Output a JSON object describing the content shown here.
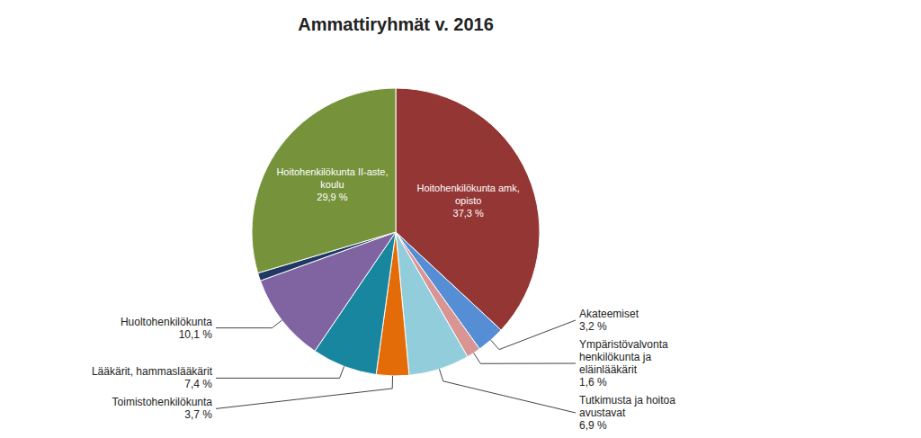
{
  "chart_data": {
    "type": "pie",
    "title": "Ammattiryhmät v. 2016",
    "categories": [
      "Hoitohenkilökunta amk,\nopisto\n37,3 %",
      "Akateemiset\n3,2 %",
      "Ympäristövalvonta\nhenkilökunta ja\neläinlääkärit\n1,6 %",
      "Tutkimusta ja hoitoa\navustavat\n6,9 %",
      "Toimistohenkilökunta\n3,7 %",
      "Lääkärit, hammaslääkärit\n7,4 %",
      "Huoltohenkilökunta\n10,1 %",
      null,
      "Hoitohenkilökunta II-aste,\nkoulu\n29,9 %"
    ],
    "values": [
      37.3,
      3.2,
      1.6,
      6.9,
      3.7,
      7.4,
      10.1,
      0.9,
      29.9
    ],
    "colors": [
      "#943634",
      "#558ed5",
      "#d99594",
      "#92cddc",
      "#e36c09",
      "#17869e",
      "#8064a2",
      "#1f3864",
      "#76933c"
    ]
  }
}
